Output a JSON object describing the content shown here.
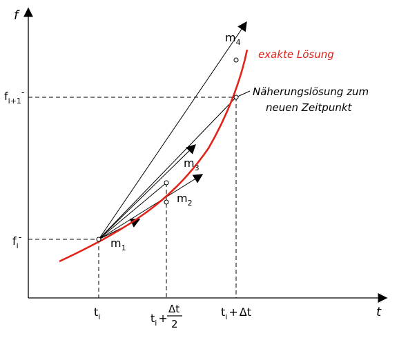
{
  "axes": {
    "x_label": "t",
    "y_label": "f"
  },
  "y_ticks": {
    "fi": {
      "base": "f",
      "sub": "i",
      "suffix": "-"
    },
    "fi1": {
      "base": "f",
      "sub": "i+1",
      "suffix": "-"
    }
  },
  "x_ticks": {
    "ti": {
      "base": "t",
      "sub": "i"
    },
    "mid": {
      "base": "t",
      "sub": "i",
      "plus": "+",
      "num": "Δt",
      "den": "2"
    },
    "end": {
      "base": "t",
      "sub": "i",
      "plus": "+",
      "delta": "Δt"
    }
  },
  "slopes": {
    "m1": {
      "base": "m",
      "sub": "1"
    },
    "m2": {
      "base": "m",
      "sub": "2"
    },
    "m3": {
      "base": "m",
      "sub": "3"
    },
    "m4": {
      "base": "m",
      "sub": "4"
    }
  },
  "annotations": {
    "exact": "exakte Lösung",
    "approx_line1": "Näherungslösung zum",
    "approx_line2": "neuen Zeitpunkt"
  },
  "colors": {
    "exact_curve": "#e2231a",
    "lines": "#000000"
  }
}
